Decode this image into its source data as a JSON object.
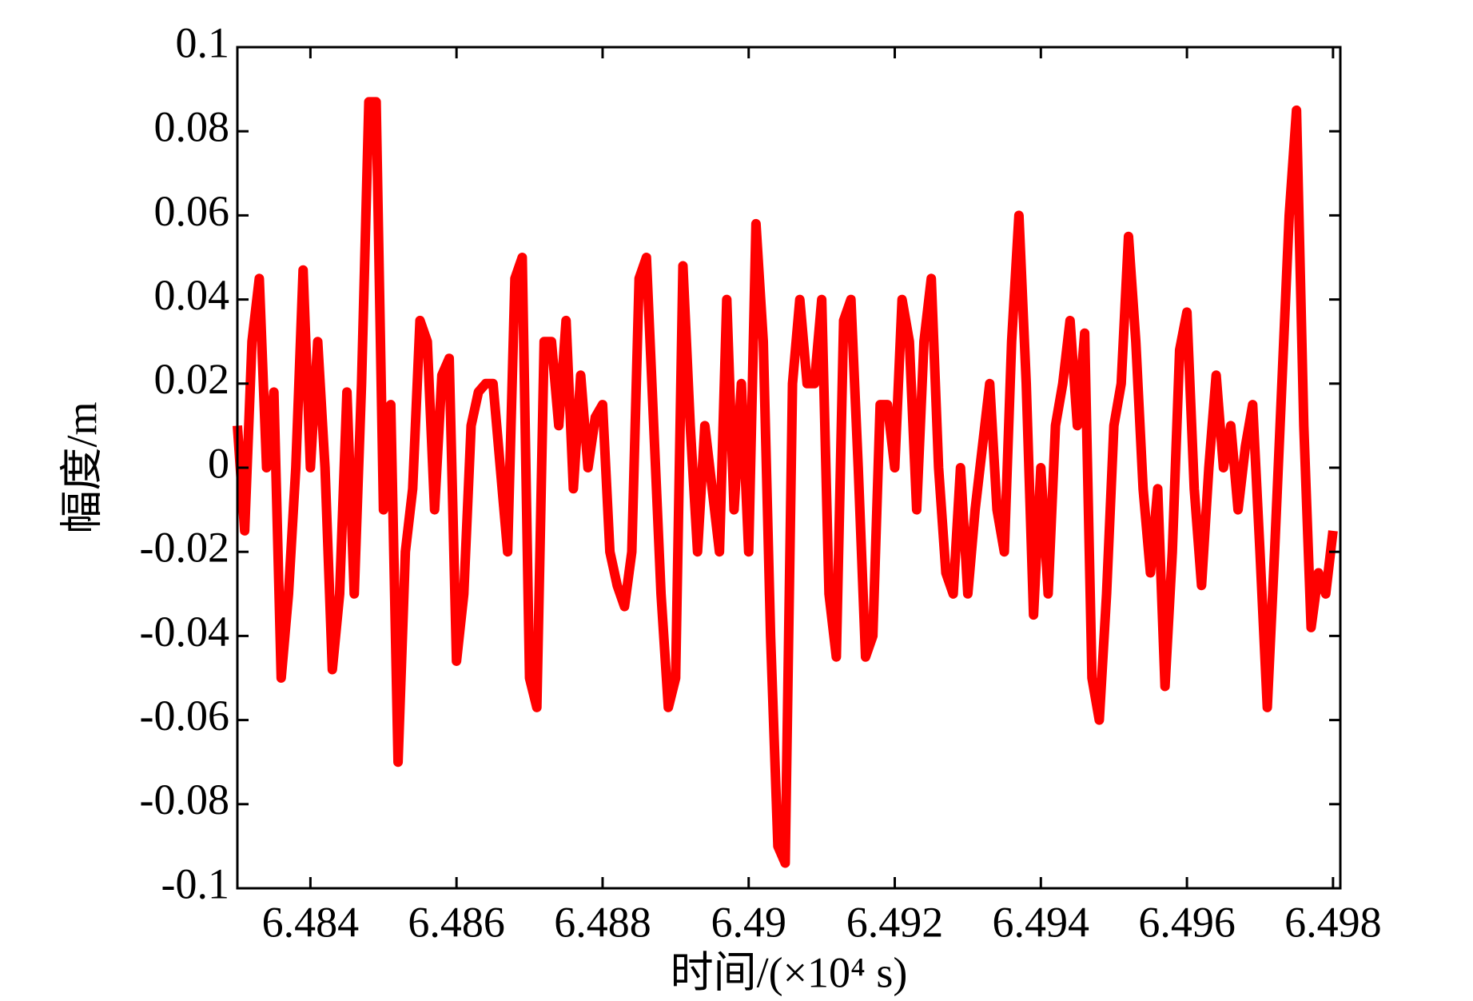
{
  "chart_data": {
    "type": "line",
    "x_label": "时间/(×10⁴ s)",
    "y_label": "幅度/m",
    "xlim": [
      6.483,
      6.4981
    ],
    "ylim": [
      -0.1,
      0.1
    ],
    "xticks": [
      6.484,
      6.486,
      6.488,
      6.49,
      6.492,
      6.494,
      6.496,
      6.498
    ],
    "yticks": [
      0.1,
      0.08,
      0.06,
      0.04,
      0.02,
      0,
      -0.02,
      -0.04,
      -0.06,
      -0.08,
      -0.1
    ],
    "grid": false,
    "series": [
      {
        "color": "#ff0000",
        "x": [
          6.483,
          6.4831,
          6.4832,
          6.4833,
          6.4834,
          6.4835,
          6.4836,
          6.4837,
          6.4838,
          6.4839,
          6.484,
          6.4841,
          6.4842,
          6.4843,
          6.4844,
          6.4845,
          6.4846,
          6.4847,
          6.4848,
          6.4849,
          6.485,
          6.4851,
          6.4852,
          6.4853,
          6.4854,
          6.4855,
          6.4856,
          6.4857,
          6.4858,
          6.4859,
          6.486,
          6.4861,
          6.4862,
          6.4863,
          6.4864,
          6.4865,
          6.4866,
          6.4867,
          6.4868,
          6.4869,
          6.487,
          6.4871,
          6.4872,
          6.4873,
          6.4874,
          6.4875,
          6.4876,
          6.4877,
          6.4878,
          6.4879,
          6.488,
          6.4881,
          6.4882,
          6.4883,
          6.4884,
          6.4885,
          6.4886,
          6.4887,
          6.4888,
          6.4889,
          6.489,
          6.4891,
          6.4892,
          6.4893,
          6.4894,
          6.4895,
          6.4896,
          6.4897,
          6.4898,
          6.4899,
          6.49,
          6.4901,
          6.4902,
          6.4903,
          6.4904,
          6.4905,
          6.4906,
          6.4907,
          6.4908,
          6.4909,
          6.491,
          6.4911,
          6.4912,
          6.4913,
          6.4914,
          6.4915,
          6.4916,
          6.4917,
          6.4918,
          6.4919,
          6.492,
          6.4921,
          6.4922,
          6.4923,
          6.4924,
          6.4925,
          6.4926,
          6.4927,
          6.4928,
          6.4929,
          6.493,
          6.4931,
          6.4932,
          6.4933,
          6.4934,
          6.4935,
          6.4936,
          6.4937,
          6.4938,
          6.4939,
          6.494,
          6.4941,
          6.4942,
          6.4943,
          6.4944,
          6.4945,
          6.4946,
          6.4947,
          6.4948,
          6.4949,
          6.495,
          6.4951,
          6.4952,
          6.4953,
          6.4954,
          6.4955,
          6.4956,
          6.4957,
          6.4958,
          6.4959,
          6.496,
          6.4961,
          6.4962,
          6.4963,
          6.4964,
          6.4965,
          6.4966,
          6.4967,
          6.4968,
          6.4969,
          6.497,
          6.4971,
          6.4972,
          6.4973,
          6.4974,
          6.4975,
          6.4976,
          6.4977,
          6.4978,
          6.4979,
          6.498
        ],
        "values": [
          0.01,
          -0.015,
          0.03,
          0.045,
          0.0,
          0.018,
          -0.05,
          -0.03,
          0.0,
          0.047,
          0.0,
          0.03,
          0.0,
          -0.048,
          -0.03,
          0.018,
          -0.03,
          0.02,
          0.087,
          0.087,
          -0.01,
          0.015,
          -0.07,
          -0.02,
          -0.005,
          0.035,
          0.03,
          -0.01,
          0.022,
          0.026,
          -0.046,
          -0.03,
          0.01,
          0.018,
          0.02,
          0.02,
          0.0,
          -0.02,
          0.045,
          0.05,
          -0.05,
          -0.057,
          0.03,
          0.03,
          0.01,
          0.035,
          -0.005,
          0.022,
          0.0,
          0.012,
          0.015,
          -0.02,
          -0.028,
          -0.033,
          -0.02,
          0.045,
          0.05,
          0.01,
          -0.03,
          -0.057,
          -0.05,
          0.048,
          0.01,
          -0.02,
          0.01,
          -0.005,
          -0.02,
          0.04,
          -0.01,
          0.02,
          -0.02,
          0.058,
          0.03,
          -0.04,
          -0.09,
          -0.094,
          0.02,
          0.04,
          0.02,
          0.02,
          0.04,
          -0.03,
          -0.045,
          0.035,
          0.04,
          0.0,
          -0.045,
          -0.04,
          0.015,
          0.015,
          0.0,
          0.04,
          0.03,
          -0.01,
          0.03,
          0.045,
          0.0,
          -0.025,
          -0.03,
          0.0,
          -0.03,
          -0.01,
          0.005,
          0.02,
          -0.01,
          -0.02,
          0.03,
          0.06,
          0.02,
          -0.035,
          0.0,
          -0.03,
          0.01,
          0.02,
          0.035,
          0.01,
          0.032,
          -0.05,
          -0.06,
          -0.03,
          0.01,
          0.02,
          0.055,
          0.03,
          -0.005,
          -0.025,
          -0.005,
          -0.052,
          -0.02,
          0.028,
          0.037,
          -0.005,
          -0.028,
          0.0,
          0.022,
          0.0,
          0.01,
          -0.01,
          0.005,
          0.015,
          -0.02,
          -0.057,
          -0.02,
          0.02,
          0.06,
          0.085,
          0.01,
          -0.038,
          -0.025,
          -0.03,
          -0.015
        ]
      }
    ]
  }
}
